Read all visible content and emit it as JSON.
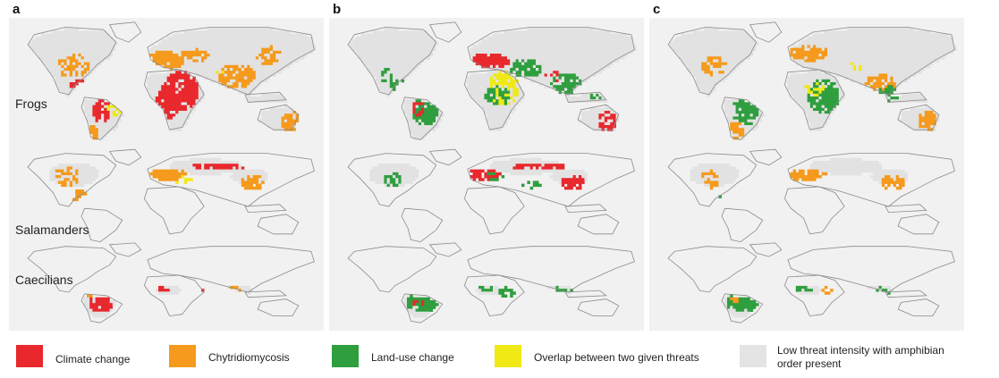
{
  "panels": [
    {
      "letter": "a",
      "theme": "a"
    },
    {
      "letter": "b",
      "theme": "b"
    },
    {
      "letter": "c",
      "theme": "c"
    }
  ],
  "rows": [
    {
      "label": "Frogs"
    },
    {
      "label": "Salamanders"
    },
    {
      "label": "Caecilians"
    }
  ],
  "legend": [
    {
      "label": "Climate change",
      "color": "#e8282d"
    },
    {
      "label": "Chytridiomycosis",
      "color": "#f59a1c"
    },
    {
      "label": "Land-use change",
      "color": "#2e9e3e"
    },
    {
      "label": "Overlap between two given threats",
      "color": "#f0e916"
    },
    {
      "label_line1": "Low threat intensity with amphibian",
      "label_line2": "order present",
      "color": "#e4e4e4"
    }
  ],
  "colors": {
    "climate": "#e8282d",
    "chytrid": "#f59a1c",
    "landuse": "#2e9e3e",
    "overlap": "#f0e916",
    "present": "#e2e2e2",
    "coast": "#8a8a8a",
    "background": "#f1f1f1"
  }
}
